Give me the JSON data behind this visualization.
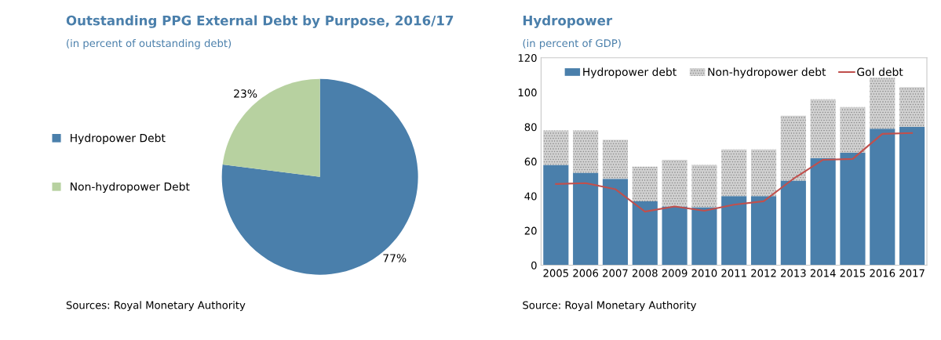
{
  "chart_data": [
    {
      "type": "pie",
      "title": "Outstanding PPG External Debt by Purpose, 2016/17",
      "subtitle": "(in percent of outstanding debt)",
      "categories": [
        "Hydropower Debt",
        "Non-hydropower Debt"
      ],
      "values": [
        77,
        23
      ],
      "colors": [
        "#4a7fab",
        "#b7d1a0"
      ],
      "value_labels": [
        "77%",
        "23%"
      ],
      "legend": "left",
      "annotations": [
        "Sources: Royal Monetary Authority"
      ]
    },
    {
      "type": "bar",
      "stacked": true,
      "title": "Hydropower",
      "subtitle": "(in percent of GDP)",
      "categories": [
        "2005",
        "2006",
        "2007",
        "2008",
        "2009",
        "2010",
        "2011",
        "2012",
        "2013",
        "2014",
        "2015",
        "2016",
        "2017"
      ],
      "ylim": [
        0,
        120
      ],
      "yticks": [
        0,
        20,
        40,
        60,
        80,
        100,
        120
      ],
      "legend": "top",
      "grid": false,
      "annotations": [
        "Source: Royal Monetary Authority"
      ],
      "series": [
        {
          "name": "Hydropower debt",
          "color": "#4a7fab",
          "values": [
            58,
            53.5,
            50,
            37,
            34,
            33.5,
            40,
            40,
            49,
            62,
            65,
            79,
            80
          ]
        },
        {
          "name": "Non-hydropower debt",
          "color": "#d0d0d0",
          "values": [
            20,
            24.5,
            22.5,
            20,
            27,
            24.5,
            27,
            27,
            37.5,
            34,
            26.5,
            29.5,
            23
          ]
        },
        {
          "name": "GoI debt",
          "type": "line",
          "color": "#c0504d",
          "values": [
            47,
            47.5,
            44,
            31,
            34,
            31.5,
            35,
            37,
            50,
            61,
            61.5,
            76,
            76.5
          ]
        }
      ]
    }
  ]
}
